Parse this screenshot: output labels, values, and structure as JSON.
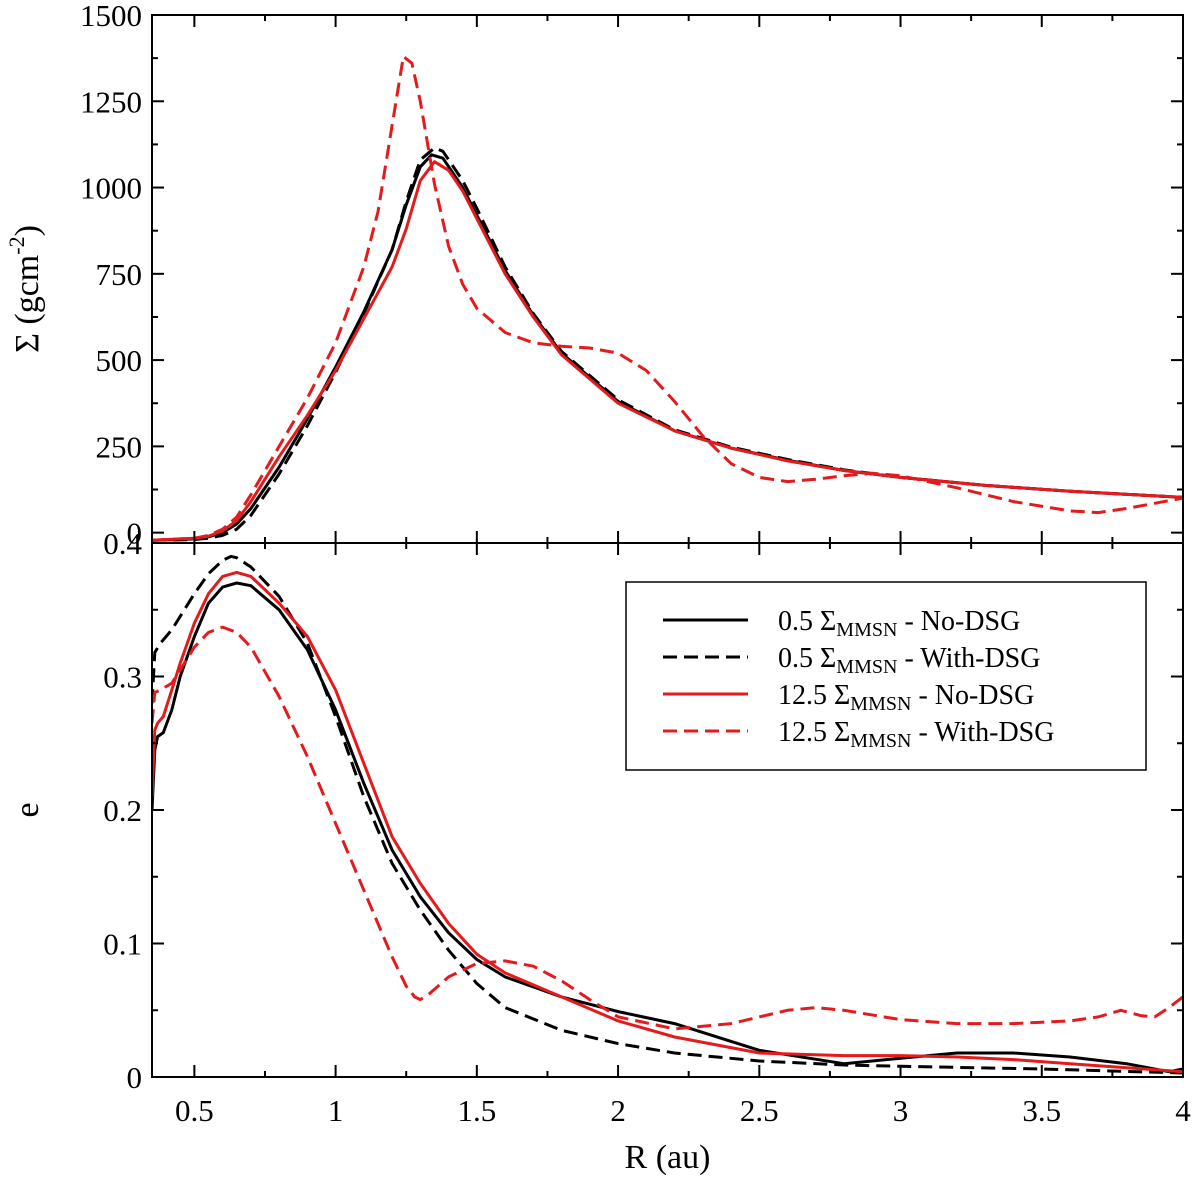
{
  "chart_data": {
    "type": "line",
    "shared_x_axis": {
      "label": "R (au)",
      "range": [
        0.35,
        4.0
      ],
      "ticks": [
        0.5,
        1,
        1.5,
        2,
        2.5,
        3,
        3.5,
        4
      ],
      "tick_labels": [
        "0.5",
        "1",
        "1.5",
        "2",
        "2.5",
        "3",
        "3.5",
        "4"
      ]
    },
    "legend": {
      "placement": "bottom-panel upper-right",
      "entries": [
        {
          "pre": "0.5 Σ",
          "sub": "MMSN",
          "post": " - No-DSG",
          "color": "#000000",
          "dashed": false
        },
        {
          "pre": "0.5 Σ",
          "sub": "MMSN",
          "post": " - With-DSG",
          "color": "#000000",
          "dashed": true
        },
        {
          "pre": "12.5 Σ",
          "sub": "MMSN",
          "post": " - No-DSG",
          "color": "#e41a1c",
          "dashed": false
        },
        {
          "pre": "12.5 Σ",
          "sub": "MMSN",
          "post": " - With-DSG",
          "color": "#e41a1c",
          "dashed": true
        }
      ]
    },
    "panels": [
      {
        "id": "sigma",
        "ylabel_pre": "Σ (gcm",
        "ylabel_sup": "-2",
        "ylabel_post": ")",
        "ylim": [
          -30,
          1500
        ],
        "yticks": [
          0,
          250,
          500,
          750,
          1000,
          1250,
          1500
        ],
        "ytick_labels": [
          "0",
          "250",
          "500",
          "750",
          "1000",
          "1250",
          "1500"
        ],
        "grid": false,
        "series": [
          {
            "color": "#000000",
            "dashed": false,
            "x": [
              0.35,
              0.45,
              0.5,
              0.55,
              0.6,
              0.65,
              0.7,
              0.8,
              0.9,
              1.0,
              1.1,
              1.2,
              1.25,
              1.3,
              1.34,
              1.38,
              1.45,
              1.5,
              1.6,
              1.7,
              1.8,
              2.0,
              2.2,
              2.4,
              2.6,
              2.8,
              3.0,
              3.3,
              3.6,
              4.0
            ],
            "y": [
              -22,
              -20,
              -18,
              -12,
              0,
              25,
              70,
              190,
              330,
              480,
              640,
              820,
              950,
              1060,
              1095,
              1085,
              1000,
              920,
              760,
              630,
              520,
              380,
              295,
              245,
              210,
              180,
              160,
              137,
              120,
              102
            ]
          },
          {
            "color": "#000000",
            "dashed": true,
            "x": [
              0.35,
              0.45,
              0.5,
              0.55,
              0.6,
              0.65,
              0.7,
              0.8,
              0.9,
              1.0,
              1.1,
              1.2,
              1.25,
              1.3,
              1.35,
              1.38,
              1.45,
              1.5,
              1.6,
              1.7,
              1.8,
              2.0,
              2.2,
              2.4,
              2.6,
              2.8,
              3.0,
              3.3,
              3.6,
              4.0
            ],
            "y": [
              -22,
              -21,
              -20,
              -16,
              -8,
              10,
              50,
              170,
              310,
              465,
              635,
              820,
              960,
              1080,
              1115,
              1105,
              1020,
              940,
              770,
              635,
              525,
              385,
              298,
              248,
              212,
              182,
              160,
              137,
              120,
              102
            ]
          },
          {
            "color": "#e41a1c",
            "dashed": false,
            "x": [
              0.35,
              0.45,
              0.5,
              0.55,
              0.6,
              0.65,
              0.7,
              0.8,
              0.9,
              1.0,
              1.1,
              1.2,
              1.25,
              1.3,
              1.35,
              1.4,
              1.45,
              1.5,
              1.6,
              1.7,
              1.8,
              2.0,
              2.2,
              2.4,
              2.6,
              2.8,
              3.0,
              3.3,
              3.6,
              4.0
            ],
            "y": [
              -22,
              -18,
              -16,
              -10,
              5,
              35,
              90,
              220,
              340,
              470,
              620,
              770,
              880,
              1020,
              1075,
              1050,
              990,
              910,
              750,
              625,
              515,
              375,
              295,
              245,
              208,
              180,
              160,
              137,
              120,
              102
            ]
          },
          {
            "color": "#e41a1c",
            "dashed": true,
            "x": [
              0.35,
              0.45,
              0.5,
              0.55,
              0.6,
              0.65,
              0.7,
              0.8,
              0.9,
              1.0,
              1.1,
              1.15,
              1.2,
              1.24,
              1.27,
              1.3,
              1.35,
              1.4,
              1.45,
              1.5,
              1.6,
              1.7,
              1.8,
              1.9,
              2.0,
              2.1,
              2.2,
              2.3,
              2.4,
              2.5,
              2.6,
              2.7,
              2.8,
              2.9,
              3.0,
              3.2,
              3.4,
              3.6,
              3.7,
              3.8,
              4.0
            ],
            "y": [
              -22,
              -18,
              -16,
              -8,
              10,
              45,
              110,
              250,
              390,
              550,
              770,
              930,
              1180,
              1380,
              1360,
              1250,
              1010,
              830,
              720,
              650,
              580,
              550,
              540,
              535,
              520,
              470,
              380,
              280,
              200,
              160,
              148,
              155,
              165,
              172,
              165,
              130,
              90,
              63,
              58,
              70,
              100
            ]
          }
        ]
      },
      {
        "id": "eccentricity",
        "ylabel": "e",
        "ylim": [
          0,
          0.4
        ],
        "yticks": [
          0,
          0.1,
          0.2,
          0.3,
          0.4
        ],
        "ytick_labels": [
          "0",
          "0.1",
          "0.2",
          "0.3",
          "0.4"
        ],
        "grid": false,
        "series": [
          {
            "color": "#000000",
            "dashed": false,
            "x": [
              0.35,
              0.36,
              0.37,
              0.39,
              0.42,
              0.45,
              0.5,
              0.55,
              0.6,
              0.65,
              0.7,
              0.8,
              0.9,
              1.0,
              1.1,
              1.2,
              1.3,
              1.4,
              1.5,
              1.6,
              1.8,
              2.0,
              2.2,
              2.5,
              2.8,
              3.0,
              3.2,
              3.4,
              3.6,
              3.8,
              3.95,
              4.0
            ],
            "y": [
              0.2,
              0.245,
              0.255,
              0.258,
              0.275,
              0.3,
              0.33,
              0.355,
              0.367,
              0.37,
              0.368,
              0.35,
              0.32,
              0.275,
              0.22,
              0.17,
              0.135,
              0.108,
              0.088,
              0.075,
              0.06,
              0.049,
              0.04,
              0.02,
              0.01,
              0.014,
              0.018,
              0.018,
              0.015,
              0.01,
              0.004,
              0.006
            ]
          },
          {
            "color": "#000000",
            "dashed": true,
            "x": [
              0.35,
              0.36,
              0.38,
              0.42,
              0.45,
              0.5,
              0.55,
              0.6,
              0.63,
              0.65,
              0.7,
              0.8,
              0.9,
              1.0,
              1.1,
              1.2,
              1.3,
              1.4,
              1.5,
              1.6,
              1.8,
              2.0,
              2.2,
              2.5,
              2.8,
              3.0,
              3.5,
              4.0
            ],
            "y": [
              0.28,
              0.318,
              0.325,
              0.335,
              0.345,
              0.362,
              0.377,
              0.387,
              0.39,
              0.389,
              0.382,
              0.36,
              0.325,
              0.27,
              0.21,
              0.16,
              0.125,
              0.095,
              0.07,
              0.052,
              0.035,
              0.025,
              0.018,
              0.012,
              0.009,
              0.008,
              0.006,
              0.003
            ]
          },
          {
            "color": "#e41a1c",
            "dashed": false,
            "x": [
              0.35,
              0.36,
              0.37,
              0.39,
              0.42,
              0.45,
              0.5,
              0.55,
              0.6,
              0.65,
              0.7,
              0.8,
              0.9,
              1.0,
              1.1,
              1.2,
              1.3,
              1.4,
              1.5,
              1.6,
              1.8,
              2.0,
              2.2,
              2.5,
              2.8,
              3.0,
              3.2,
              3.4,
              3.6,
              3.8,
              4.0
            ],
            "y": [
              0.21,
              0.26,
              0.265,
              0.27,
              0.29,
              0.31,
              0.34,
              0.362,
              0.375,
              0.378,
              0.375,
              0.355,
              0.33,
              0.29,
              0.235,
              0.18,
              0.145,
              0.115,
              0.092,
              0.078,
              0.06,
              0.042,
              0.03,
              0.018,
              0.016,
              0.016,
              0.015,
              0.013,
              0.01,
              0.007,
              0.004
            ]
          },
          {
            "color": "#e41a1c",
            "dashed": true,
            "x": [
              0.35,
              0.36,
              0.38,
              0.42,
              0.45,
              0.5,
              0.55,
              0.6,
              0.65,
              0.7,
              0.8,
              0.9,
              1.0,
              1.1,
              1.2,
              1.25,
              1.28,
              1.3,
              1.33,
              1.4,
              1.5,
              1.6,
              1.7,
              1.8,
              1.9,
              2.0,
              2.2,
              2.4,
              2.6,
              2.7,
              2.8,
              3.0,
              3.2,
              3.4,
              3.6,
              3.7,
              3.78,
              3.85,
              3.9,
              3.95,
              4.0
            ],
            "y": [
              0.265,
              0.288,
              0.29,
              0.295,
              0.305,
              0.322,
              0.333,
              0.337,
              0.333,
              0.322,
              0.285,
              0.24,
              0.19,
              0.14,
              0.09,
              0.068,
              0.06,
              0.058,
              0.062,
              0.075,
              0.085,
              0.087,
              0.083,
              0.072,
              0.058,
              0.045,
              0.036,
              0.04,
              0.05,
              0.052,
              0.05,
              0.043,
              0.04,
              0.04,
              0.042,
              0.045,
              0.05,
              0.046,
              0.045,
              0.052,
              0.06
            ]
          }
        ]
      }
    ]
  }
}
